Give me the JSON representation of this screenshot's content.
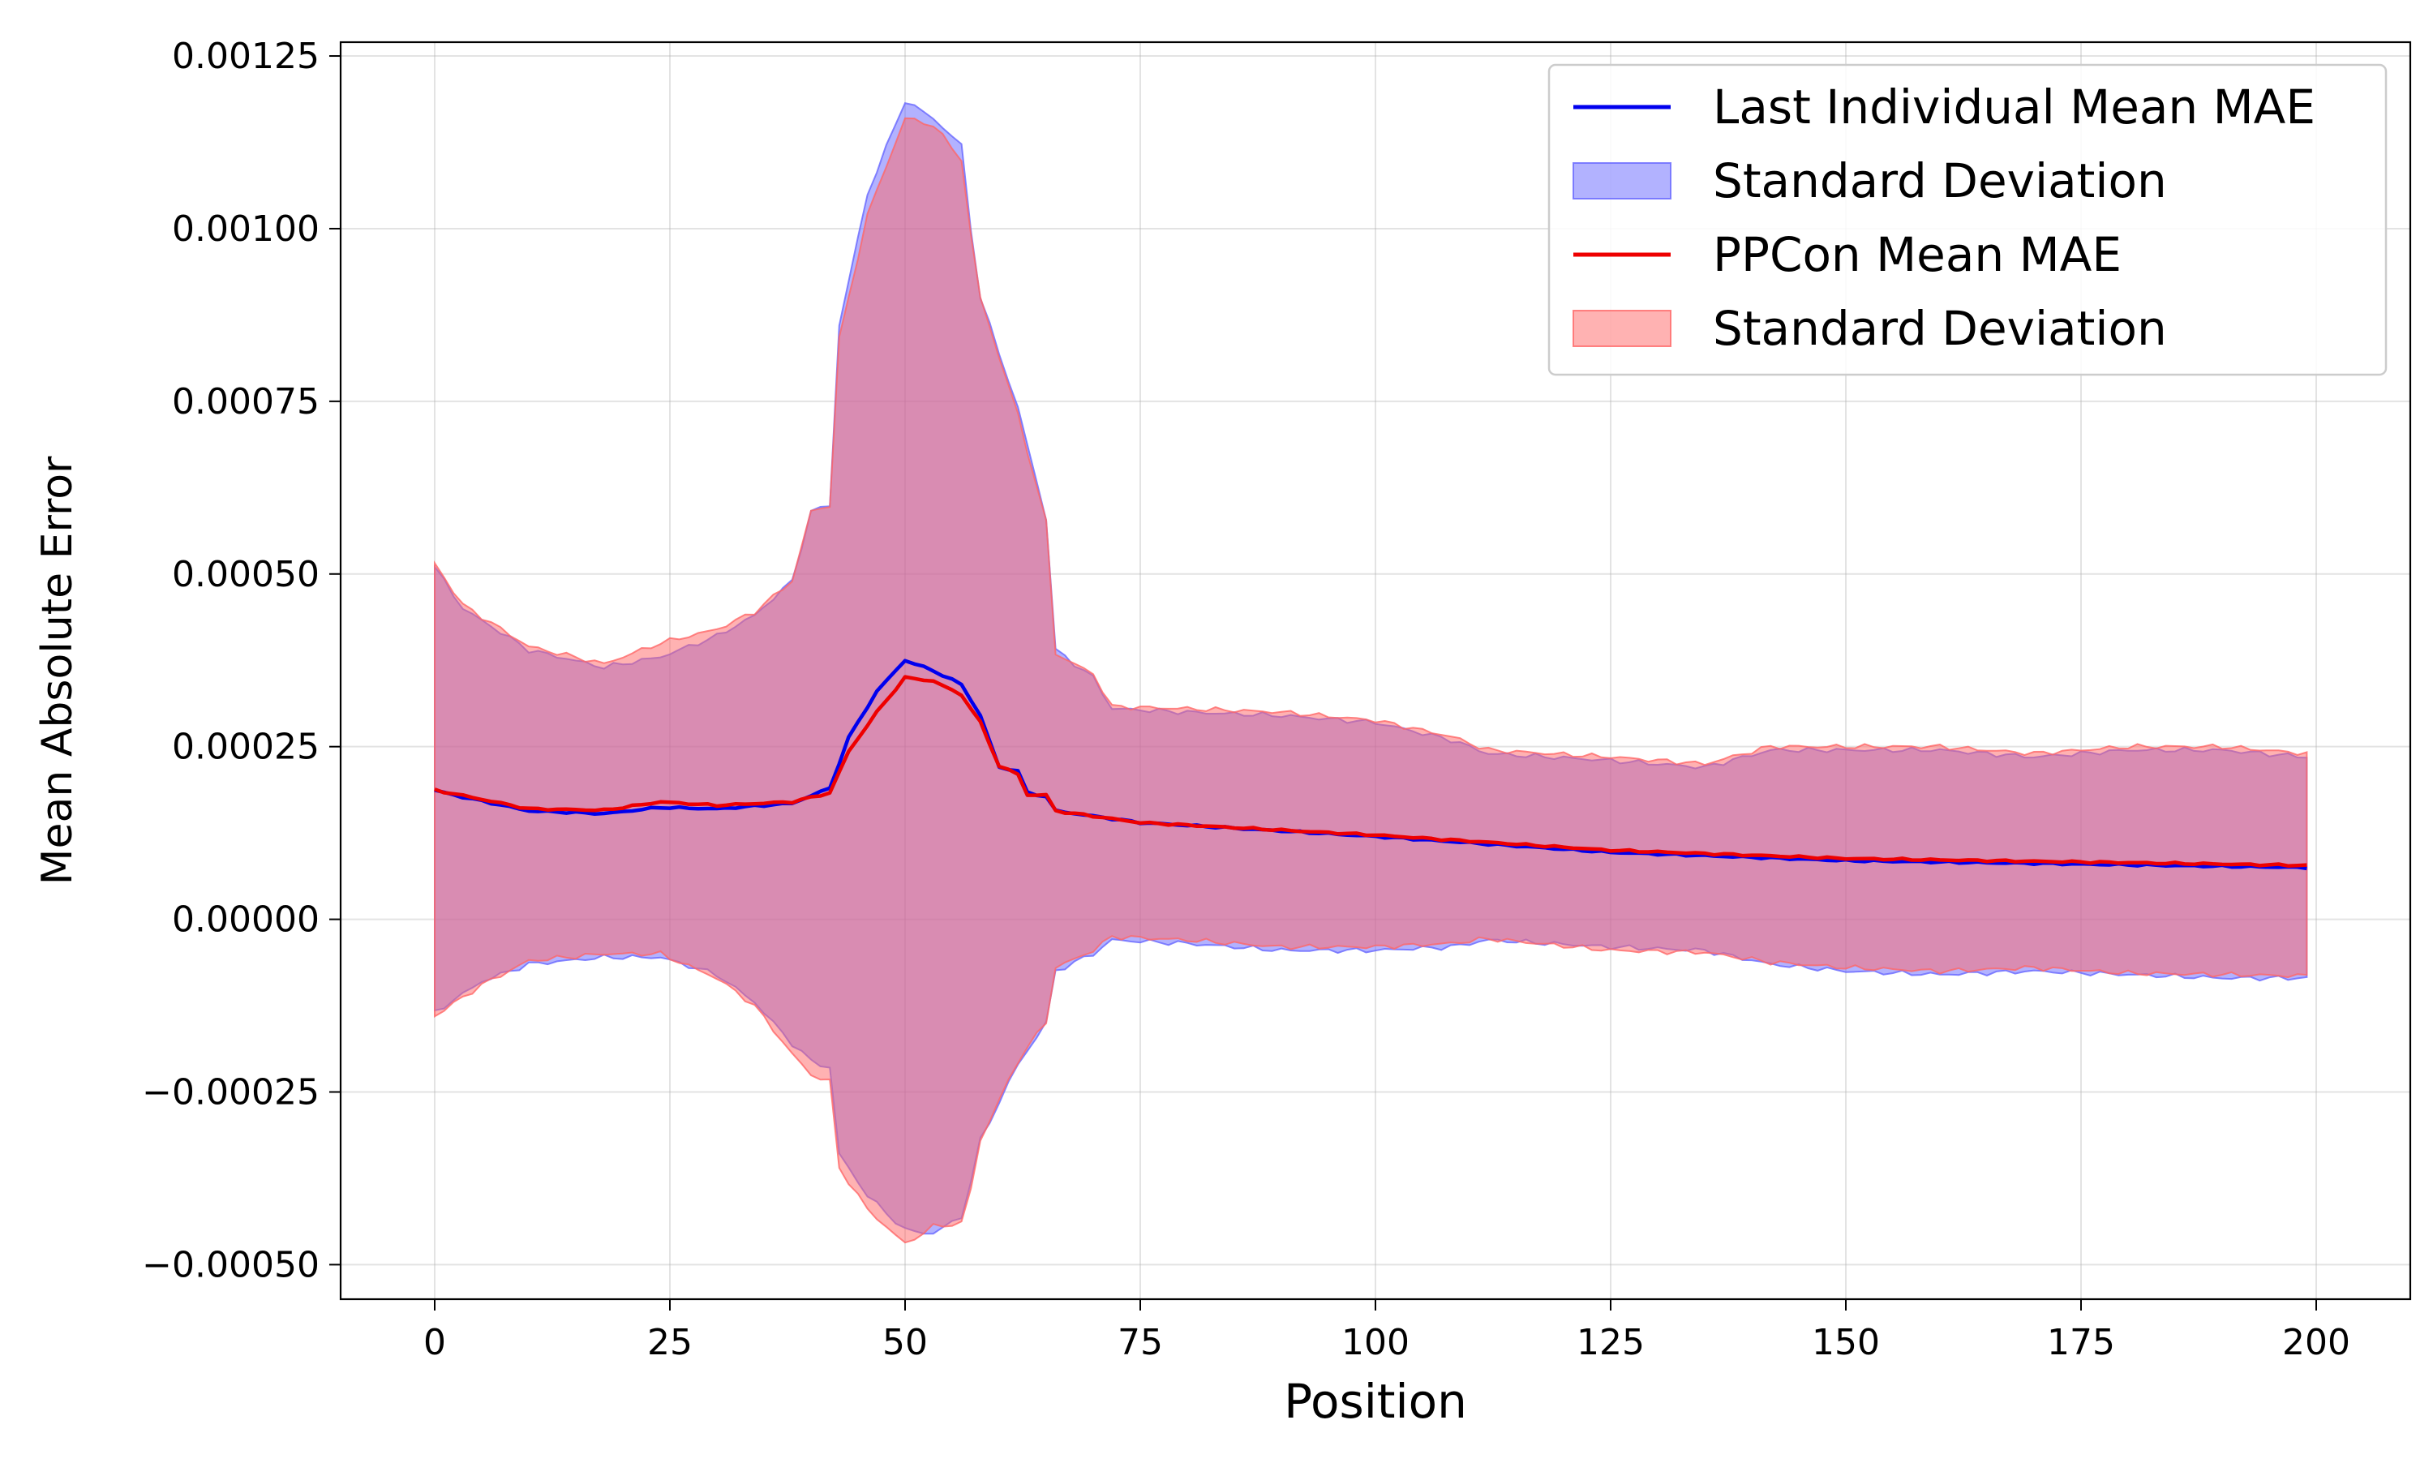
{
  "chart_data": {
    "type": "line",
    "title": "",
    "xlabel": "Position",
    "ylabel": "Mean Absolute Error",
    "xlim": [
      -10,
      210
    ],
    "ylim": [
      -0.00055,
      0.00127
    ],
    "grid": true,
    "legend_position": "top-right",
    "x_ticks": [
      {
        "value": 0,
        "label": "0"
      },
      {
        "value": 25,
        "label": "25"
      },
      {
        "value": 50,
        "label": "50"
      },
      {
        "value": 75,
        "label": "75"
      },
      {
        "value": 100,
        "label": "100"
      },
      {
        "value": 125,
        "label": "125"
      },
      {
        "value": 150,
        "label": "150"
      },
      {
        "value": 175,
        "label": "175"
      },
      {
        "value": 200,
        "label": "200"
      }
    ],
    "y_ticks": [
      {
        "value": -0.0005,
        "label": "−0.00050"
      },
      {
        "value": -0.00025,
        "label": "−0.00025"
      },
      {
        "value": 0.0,
        "label": "0.00000"
      },
      {
        "value": 0.00025,
        "label": "0.00025"
      },
      {
        "value": 0.0005,
        "label": "0.00050"
      },
      {
        "value": 0.00075,
        "label": "0.00075"
      },
      {
        "value": 0.001,
        "label": "0.00100"
      },
      {
        "value": 0.00125,
        "label": "0.00125"
      }
    ],
    "x_range": {
      "start": 0,
      "end": 199,
      "step": 1
    },
    "series": [
      {
        "name": "Last Individual Mean MAE",
        "band_name": "Standard Deviation",
        "color": "#0000ee",
        "band_color": "#6666ff",
        "mean_keypoints": [
          [
            0,
            0.000187
          ],
          [
            2,
            0.00018
          ],
          [
            10,
            0.000157
          ],
          [
            18,
            0.000153
          ],
          [
            24,
            0.000162
          ],
          [
            30,
            0.00016
          ],
          [
            38,
            0.000168
          ],
          [
            42,
            0.00019
          ],
          [
            44,
            0.000263
          ],
          [
            47,
            0.00033
          ],
          [
            50,
            0.000375
          ],
          [
            53,
            0.00036
          ],
          [
            56,
            0.00034
          ],
          [
            58,
            0.000295
          ],
          [
            60,
            0.00022
          ],
          [
            62,
            0.000215
          ],
          [
            63,
            0.000183
          ],
          [
            65,
            0.000178
          ],
          [
            66,
            0.000157
          ],
          [
            75,
            0.00014
          ],
          [
            100,
            0.00012
          ],
          [
            125,
            9.7e-05
          ],
          [
            150,
            8.5e-05
          ],
          [
            175,
            8e-05
          ],
          [
            199,
            7.5e-05
          ]
        ],
        "upper_keypoints": [
          [
            0,
            0.00051
          ],
          [
            3,
            0.00045
          ],
          [
            10,
            0.00039
          ],
          [
            18,
            0.000365
          ],
          [
            24,
            0.00038
          ],
          [
            30,
            0.00041
          ],
          [
            34,
            0.00044
          ],
          [
            38,
            0.00049
          ],
          [
            40,
            0.00059
          ],
          [
            42,
            0.0006
          ],
          [
            43,
            0.00086
          ],
          [
            46,
            0.00105
          ],
          [
            50,
            0.001185
          ],
          [
            53,
            0.00116
          ],
          [
            56,
            0.00112
          ],
          [
            57,
            0.001
          ],
          [
            58,
            0.0009
          ],
          [
            62,
            0.00074
          ],
          [
            65,
            0.00058
          ],
          [
            66,
            0.00039
          ],
          [
            70,
            0.00035
          ],
          [
            72,
            0.000305
          ],
          [
            80,
            0.0003
          ],
          [
            90,
            0.000295
          ],
          [
            100,
            0.000285
          ],
          [
            108,
            0.00026
          ],
          [
            112,
            0.00024
          ],
          [
            125,
            0.00023
          ],
          [
            135,
            0.00022
          ],
          [
            142,
            0.000245
          ],
          [
            150,
            0.000245
          ],
          [
            160,
            0.000245
          ],
          [
            170,
            0.000235
          ],
          [
            180,
            0.000245
          ],
          [
            190,
            0.000245
          ],
          [
            199,
            0.000235
          ]
        ],
        "lower_keypoints": [
          [
            0,
            -0.000135
          ],
          [
            5,
            -9e-05
          ],
          [
            10,
            -6.5e-05
          ],
          [
            18,
            -5.5e-05
          ],
          [
            24,
            -5.5e-05
          ],
          [
            30,
            -8e-05
          ],
          [
            34,
            -0.00012
          ],
          [
            38,
            -0.00018
          ],
          [
            40,
            -0.000205
          ],
          [
            42,
            -0.000215
          ],
          [
            43,
            -0.00034
          ],
          [
            46,
            -0.0004
          ],
          [
            50,
            -0.00045
          ],
          [
            53,
            -0.000455
          ],
          [
            56,
            -0.00043
          ],
          [
            57,
            -0.00038
          ],
          [
            58,
            -0.00032
          ],
          [
            62,
            -0.00021
          ],
          [
            65,
            -0.00015
          ],
          [
            66,
            -7.5e-05
          ],
          [
            70,
            -5e-05
          ],
          [
            72,
            -3e-05
          ],
          [
            80,
            -3.5e-05
          ],
          [
            90,
            -4.5e-05
          ],
          [
            100,
            -4.5e-05
          ],
          [
            108,
            -4e-05
          ],
          [
            112,
            -3e-05
          ],
          [
            125,
            -4e-05
          ],
          [
            135,
            -4.5e-05
          ],
          [
            142,
            -6.5e-05
          ],
          [
            150,
            -7.5e-05
          ],
          [
            160,
            -8e-05
          ],
          [
            170,
            -7.5e-05
          ],
          [
            180,
            -8e-05
          ],
          [
            190,
            -8.5e-05
          ],
          [
            199,
            -8.5e-05
          ]
        ]
      },
      {
        "name": "PPCon Mean MAE",
        "band_name": "Standard Deviation",
        "color": "#ee0000",
        "band_color": "#ff6666",
        "mean_keypoints": [
          [
            0,
            0.000187
          ],
          [
            2,
            0.000182
          ],
          [
            10,
            0.00016
          ],
          [
            18,
            0.000158
          ],
          [
            24,
            0.00017
          ],
          [
            30,
            0.000165
          ],
          [
            38,
            0.00017
          ],
          [
            42,
            0.000183
          ],
          [
            44,
            0.000243
          ],
          [
            47,
            0.0003
          ],
          [
            50,
            0.00035
          ],
          [
            53,
            0.000345
          ],
          [
            56,
            0.000325
          ],
          [
            58,
            0.000285
          ],
          [
            60,
            0.000222
          ],
          [
            62,
            0.00021
          ],
          [
            63,
            0.00018
          ],
          [
            65,
            0.00018
          ],
          [
            66,
            0.000157
          ],
          [
            75,
            0.00014
          ],
          [
            100,
            0.000122
          ],
          [
            125,
            0.0001
          ],
          [
            150,
            8.8e-05
          ],
          [
            175,
            8.3e-05
          ],
          [
            199,
            7.8e-05
          ]
        ],
        "upper_keypoints": [
          [
            0,
            0.000515
          ],
          [
            3,
            0.000455
          ],
          [
            10,
            0.000395
          ],
          [
            18,
            0.00037
          ],
          [
            24,
            0.0004
          ],
          [
            30,
            0.00042
          ],
          [
            34,
            0.000445
          ],
          [
            38,
            0.00049
          ],
          [
            40,
            0.00059
          ],
          [
            42,
            0.0006
          ],
          [
            43,
            0.00084
          ],
          [
            46,
            0.00102
          ],
          [
            50,
            0.00116
          ],
          [
            53,
            0.00115
          ],
          [
            56,
            0.0011
          ],
          [
            57,
            0.00099
          ],
          [
            58,
            0.0009
          ],
          [
            62,
            0.00073
          ],
          [
            65,
            0.000575
          ],
          [
            66,
            0.000385
          ],
          [
            70,
            0.000355
          ],
          [
            72,
            0.000308
          ],
          [
            80,
            0.000305
          ],
          [
            90,
            0.0003
          ],
          [
            100,
            0.000288
          ],
          [
            108,
            0.000265
          ],
          [
            112,
            0.000245
          ],
          [
            125,
            0.000235
          ],
          [
            135,
            0.000225
          ],
          [
            142,
            0.00025
          ],
          [
            150,
            0.00025
          ],
          [
            160,
            0.00025
          ],
          [
            170,
            0.00024
          ],
          [
            180,
            0.00025
          ],
          [
            190,
            0.00025
          ],
          [
            199,
            0.00024
          ]
        ],
        "lower_keypoints": [
          [
            0,
            -0.00014
          ],
          [
            5,
            -9.5e-05
          ],
          [
            10,
            -6e-05
          ],
          [
            18,
            -5e-05
          ],
          [
            24,
            -5e-05
          ],
          [
            30,
            -8.5e-05
          ],
          [
            34,
            -0.000125
          ],
          [
            38,
            -0.000195
          ],
          [
            40,
            -0.000225
          ],
          [
            42,
            -0.000235
          ],
          [
            43,
            -0.00036
          ],
          [
            46,
            -0.00042
          ],
          [
            50,
            -0.00047
          ],
          [
            53,
            -0.000445
          ],
          [
            56,
            -0.00044
          ],
          [
            57,
            -0.00039
          ],
          [
            58,
            -0.00032
          ],
          [
            62,
            -0.000205
          ],
          [
            65,
            -0.000148
          ],
          [
            66,
            -7e-05
          ],
          [
            70,
            -4.5e-05
          ],
          [
            72,
            -2.5e-05
          ],
          [
            80,
            -3e-05
          ],
          [
            90,
            -4e-05
          ],
          [
            100,
            -4e-05
          ],
          [
            108,
            -3.5e-05
          ],
          [
            112,
            -2.8e-05
          ],
          [
            125,
            -4.5e-05
          ],
          [
            135,
            -4.8e-05
          ],
          [
            142,
            -6.2e-05
          ],
          [
            150,
            -7e-05
          ],
          [
            160,
            -7.5e-05
          ],
          [
            170,
            -7e-05
          ],
          [
            180,
            -7.8e-05
          ],
          [
            190,
            -8e-05
          ],
          [
            199,
            -8.2e-05
          ]
        ]
      }
    ],
    "legend": [
      {
        "label": "Last Individual Mean MAE",
        "kind": "line",
        "color": "#0000ee"
      },
      {
        "label": "Standard Deviation",
        "kind": "patch",
        "color": "#6666ff"
      },
      {
        "label": "PPCon Mean MAE",
        "kind": "line",
        "color": "#ee0000"
      },
      {
        "label": "Standard Deviation",
        "kind": "patch",
        "color": "#ff6666"
      }
    ]
  }
}
